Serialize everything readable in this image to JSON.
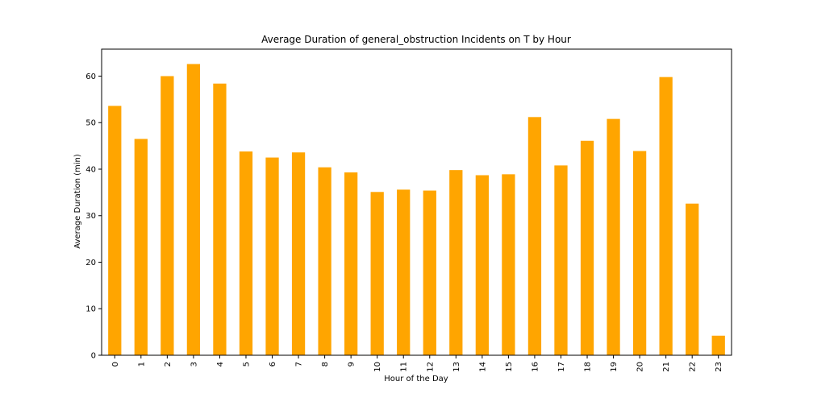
{
  "chart_data": {
    "type": "bar",
    "title": "Average Duration of general_obstruction Incidents on T by Hour",
    "xlabel": "Hour of the Day",
    "ylabel": "Average Duration (min)",
    "categories": [
      "0",
      "1",
      "2",
      "3",
      "4",
      "5",
      "6",
      "7",
      "8",
      "9",
      "10",
      "11",
      "12",
      "13",
      "14",
      "15",
      "16",
      "17",
      "18",
      "19",
      "20",
      "21",
      "22",
      "23"
    ],
    "values": [
      53.6,
      46.5,
      60.0,
      62.6,
      58.4,
      43.8,
      42.5,
      43.6,
      40.4,
      39.3,
      35.1,
      35.6,
      35.4,
      39.8,
      38.7,
      38.9,
      51.2,
      40.8,
      46.1,
      50.8,
      43.9,
      59.8,
      32.6,
      4.2
    ],
    "yticks": [
      0,
      10,
      20,
      30,
      40,
      50,
      60
    ],
    "ylim": [
      0,
      65.8
    ],
    "bar_color": "#ffa500",
    "grid": false,
    "legend": "none"
  }
}
